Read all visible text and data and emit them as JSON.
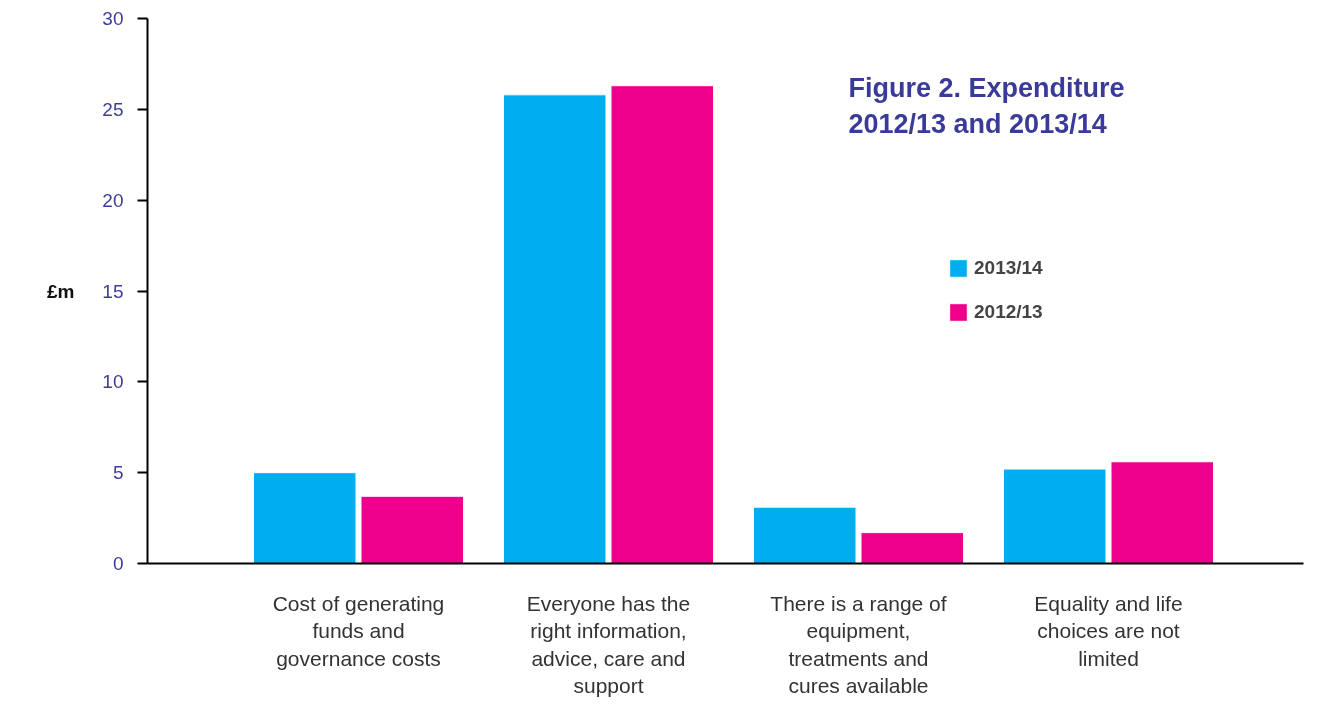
{
  "chart_data": {
    "type": "bar",
    "title": "Figure 2. Expenditure 2012/13 and 2013/14",
    "ylabel": "£m",
    "categories": [
      "Cost of generating funds and governance costs",
      "Everyone has the right information, advice, care and support",
      "There is a range of equipment, treatments and cures available",
      "Equality and life choices are not limited"
    ],
    "series": [
      {
        "name": "2013/14",
        "color": "#00adee",
        "values": [
          5.0,
          25.8,
          3.1,
          5.2
        ]
      },
      {
        "name": "2012/13",
        "color": "#ec008c",
        "values": [
          3.7,
          26.3,
          1.7,
          5.6
        ]
      }
    ],
    "ylim": [
      0,
      30
    ],
    "yticks": [
      0,
      5,
      10,
      15,
      20,
      25,
      30
    ],
    "grid": false,
    "legend": "top right"
  }
}
